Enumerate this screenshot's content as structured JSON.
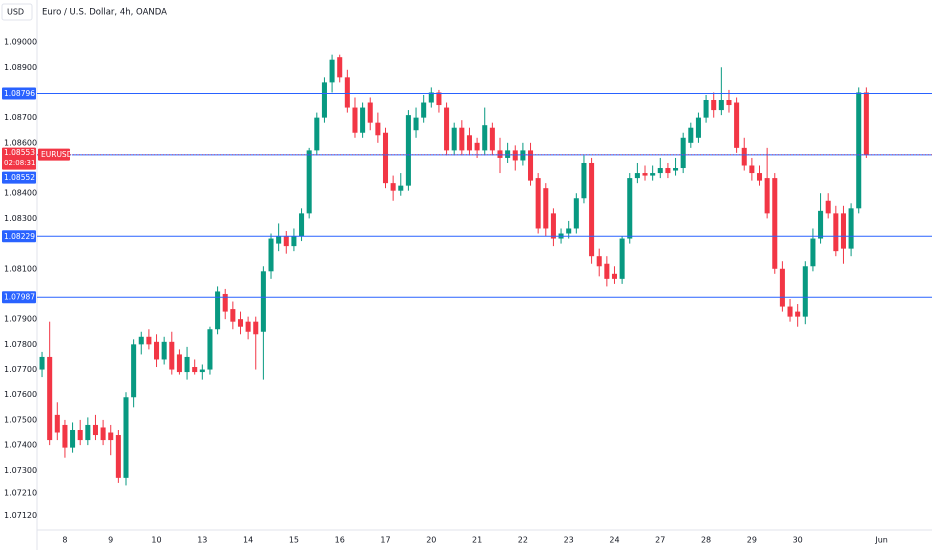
{
  "chart_data": {
    "type": "candlestick",
    "title": "Euro / U.S. Dollar, 4h, OANDA",
    "currency": "USD",
    "up_color": "#089981",
    "down_color": "#f23645",
    "line_color": "#2962ff",
    "grid": false,
    "ylim": [
      1.07063,
      1.09167
    ],
    "xlim": [
      -0.66,
      116.6
    ],
    "yticks": [
      {
        "value": 1.09,
        "label": "1.09000"
      },
      {
        "value": 1.089,
        "label": "1.08900"
      },
      {
        "value": 1.087,
        "label": "1.08700"
      },
      {
        "value": 1.086,
        "label": "1.08600"
      },
      {
        "value": 1.084,
        "label": "1.08400"
      },
      {
        "value": 1.083,
        "label": "1.08300"
      },
      {
        "value": 1.081,
        "label": "1.08100"
      },
      {
        "value": 1.079,
        "label": "1.07900"
      },
      {
        "value": 1.078,
        "label": "1.07800"
      },
      {
        "value": 1.077,
        "label": "1.07700"
      },
      {
        "value": 1.076,
        "label": "1.07600"
      },
      {
        "value": 1.075,
        "label": "1.07500"
      },
      {
        "value": 1.074,
        "label": "1.07400"
      },
      {
        "value": 1.073,
        "label": "1.07300"
      },
      {
        "value": 1.0721,
        "label": "1.07210"
      },
      {
        "value": 1.0712,
        "label": "1.07120"
      }
    ],
    "xticks": [
      {
        "value": 3,
        "label": "8"
      },
      {
        "value": 9,
        "label": "9"
      },
      {
        "value": 15,
        "label": "10"
      },
      {
        "value": 21,
        "label": "13"
      },
      {
        "value": 27,
        "label": "14"
      },
      {
        "value": 33,
        "label": "15"
      },
      {
        "value": 39,
        "label": "16"
      },
      {
        "value": 45,
        "label": "17"
      },
      {
        "value": 51,
        "label": "20"
      },
      {
        "value": 57,
        "label": "21"
      },
      {
        "value": 63,
        "label": "22"
      },
      {
        "value": 69,
        "label": "23"
      },
      {
        "value": 75,
        "label": "24"
      },
      {
        "value": 81,
        "label": "27"
      },
      {
        "value": 87,
        "label": "28"
      },
      {
        "value": 93,
        "label": "29"
      },
      {
        "value": 99,
        "label": "30"
      },
      {
        "value": 110,
        "label": "Jun"
      }
    ],
    "hlines": [
      {
        "value": 1.08796,
        "label": "1.08796"
      },
      {
        "value": 1.08552,
        "label": "1.08552"
      },
      {
        "value": 1.08229,
        "label": "1.08229"
      },
      {
        "value": 1.07987,
        "label": "1.07987"
      }
    ],
    "last_price": {
      "value": 1.08553,
      "label": "1.08553"
    },
    "countdown": "02:08:31",
    "symbol": "EURUSD",
    "open": [
      1.077,
      1.0775,
      1.0752,
      1.0748,
      1.0739,
      1.0746,
      1.0742,
      1.0748,
      1.0747,
      1.0745,
      1.0744,
      1.0727,
      1.0759,
      1.078,
      1.0783,
      1.0781,
      1.0774,
      1.0781,
      1.0776,
      1.0769,
      1.0771,
      1.0769,
      1.077,
      1.0786,
      1.08,
      1.0794,
      1.079,
      1.0789,
      1.0789,
      1.0785,
      1.0809,
      1.082,
      1.0823,
      1.0819,
      1.0823,
      1.0832,
      1.0857,
      1.087,
      1.0884,
      1.0894,
      1.0886,
      1.0874,
      1.0864,
      1.0876,
      1.0868,
      1.0864,
      1.0844,
      1.0841,
      1.0843,
      1.0865,
      1.087,
      1.0876,
      1.088,
      1.0874,
      1.0857,
      1.0866,
      1.0863,
      1.086,
      1.0857,
      1.0866,
      1.0857,
      1.0854,
      1.0857,
      1.0853,
      1.0857,
      1.0846,
      1.0842,
      1.0832,
      1.0822,
      1.0824,
      1.0826,
      1.0838,
      1.0852,
      1.0815,
      1.0812,
      1.0808,
      1.0806,
      1.0822,
      1.0846,
      1.0848,
      1.0847,
      1.0848,
      1.085,
      1.0849,
      1.085,
      1.086,
      1.0862,
      1.087,
      1.0877,
      1.0873,
      1.0877,
      1.0876,
      1.0858,
      1.0851,
      1.0848,
      1.0846,
      1.0846,
      1.081,
      1.0795,
      1.0793,
      1.0791,
      1.0811,
      1.0822,
      1.0837,
      1.0832,
      1.0832,
      1.0818,
      1.0834,
      1.088
    ],
    "high": [
      1.0777,
      1.0789,
      1.0757,
      1.075,
      1.0749,
      1.075,
      1.0751,
      1.0752,
      1.075,
      1.0748,
      1.0746,
      1.0761,
      1.0782,
      1.0785,
      1.0786,
      1.0784,
      1.0783,
      1.0785,
      1.0778,
      1.0779,
      1.0774,
      1.0772,
      1.0787,
      1.0803,
      1.0802,
      1.0797,
      1.0793,
      1.0791,
      1.0791,
      1.0811,
      1.0824,
      1.0828,
      1.0825,
      1.0826,
      1.0834,
      1.0858,
      1.0872,
      1.0886,
      1.0895,
      1.0895,
      1.0889,
      1.0878,
      1.0876,
      1.0878,
      1.0872,
      1.0866,
      1.0847,
      1.0848,
      1.0873,
      1.0874,
      1.0879,
      1.0882,
      1.0881,
      1.0876,
      1.0868,
      1.0869,
      1.0866,
      1.0862,
      1.0874,
      1.0868,
      1.0862,
      1.086,
      1.0859,
      1.086,
      1.086,
      1.0848,
      1.0844,
      1.0834,
      1.0826,
      1.0829,
      1.084,
      1.0855,
      1.0854,
      1.0818,
      1.0815,
      1.0811,
      1.0823,
      1.0848,
      1.0852,
      1.0851,
      1.0851,
      1.0854,
      1.0852,
      1.0854,
      1.0864,
      1.0868,
      1.0872,
      1.0879,
      1.088,
      1.089,
      1.0881,
      1.0878,
      1.0862,
      1.0854,
      1.0851,
      1.0858,
      1.0848,
      1.0813,
      1.0798,
      1.0796,
      1.0813,
      1.0826,
      1.084,
      1.084,
      1.0835,
      1.0835,
      1.0836,
      1.0882,
      1.0882
    ],
    "low": [
      1.0767,
      1.074,
      1.0742,
      1.0735,
      1.0737,
      1.074,
      1.074,
      1.0742,
      1.074,
      1.0736,
      1.0725,
      1.0724,
      1.0755,
      1.0776,
      1.0778,
      1.0771,
      1.0772,
      1.0768,
      1.0768,
      1.0766,
      1.0768,
      1.0766,
      1.0768,
      1.0784,
      1.079,
      1.0786,
      1.0784,
      1.0782,
      1.077,
      1.0766,
      1.0806,
      1.0817,
      1.0816,
      1.0817,
      1.0821,
      1.083,
      1.0855,
      1.0868,
      1.088,
      1.0884,
      1.0872,
      1.0862,
      1.0862,
      1.0865,
      1.086,
      1.0842,
      1.0837,
      1.0839,
      1.0841,
      1.0862,
      1.0868,
      1.0874,
      1.0872,
      1.0855,
      1.0855,
      1.0855,
      1.0855,
      1.0854,
      1.0855,
      1.0855,
      1.0848,
      1.0852,
      1.0849,
      1.0851,
      1.0843,
      1.0824,
      1.0823,
      1.0819,
      1.082,
      1.0822,
      1.0824,
      1.0836,
      1.0812,
      1.0807,
      1.0803,
      1.0804,
      1.0804,
      1.082,
      1.0844,
      1.0845,
      1.0845,
      1.0846,
      1.0846,
      1.0847,
      1.0848,
      1.0858,
      1.086,
      1.0868,
      1.087,
      1.0871,
      1.0872,
      1.0856,
      1.0849,
      1.0845,
      1.0843,
      1.083,
      1.0808,
      1.0793,
      1.0789,
      1.0787,
      1.0788,
      1.0809,
      1.082,
      1.083,
      1.0815,
      1.0812,
      1.0815,
      1.0832,
      1.0854
    ],
    "close": [
      1.0775,
      1.0742,
      1.0745,
      1.0739,
      1.0746,
      1.0742,
      1.0748,
      1.0744,
      1.0742,
      1.0742,
      1.0727,
      1.0759,
      1.078,
      1.0783,
      1.078,
      1.0774,
      1.0781,
      1.077,
      1.0769,
      1.0775,
      1.0769,
      1.077,
      1.0786,
      1.0801,
      1.0793,
      1.0789,
      1.0787,
      1.0785,
      1.0784,
      1.0809,
      1.0822,
      1.0823,
      1.0819,
      1.0823,
      1.0832,
      1.0857,
      1.087,
      1.0884,
      1.0893,
      1.0886,
      1.0874,
      1.0864,
      1.0874,
      1.0868,
      1.0863,
      1.0844,
      1.0841,
      1.0843,
      1.0871,
      1.087,
      1.0876,
      1.088,
      1.0875,
      1.0857,
      1.0866,
      1.0857,
      1.0857,
      1.0857,
      1.0867,
      1.0857,
      1.0854,
      1.0857,
      1.0853,
      1.0857,
      1.0845,
      1.0826,
      1.0826,
      1.0822,
      1.0824,
      1.0826,
      1.0838,
      1.0852,
      1.0815,
      1.0811,
      1.0806,
      1.0806,
      1.0822,
      1.0846,
      1.0848,
      1.0847,
      1.0848,
      1.085,
      1.0848,
      1.085,
      1.0862,
      1.0866,
      1.087,
      1.0877,
      1.0873,
      1.0877,
      1.0875,
      1.0858,
      1.0851,
      1.0848,
      1.0845,
      1.0832,
      1.081,
      1.0795,
      1.0791,
      1.0791,
      1.0811,
      1.0822,
      1.0833,
      1.0832,
      1.0817,
      1.0818,
      1.0834,
      1.088,
      1.08553
    ]
  }
}
